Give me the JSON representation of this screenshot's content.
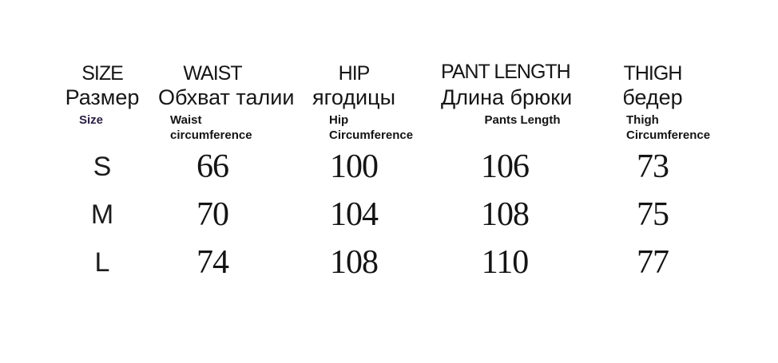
{
  "chart_data": {
    "type": "table",
    "columns": [
      {
        "en": "SIZE",
        "ru": "Размер",
        "sub": "Size"
      },
      {
        "en": "WAIST",
        "ru": "Обхват талии",
        "sub": "Waist circumference"
      },
      {
        "en": "HIP",
        "ru": "ягодицы",
        "sub": "Hip Circumference"
      },
      {
        "en": "PANT LENGTH",
        "ru": "Длина брюки",
        "sub": "Pants Length"
      },
      {
        "en": "THIGH",
        "ru": "бедер",
        "sub": "Thigh Circumference"
      }
    ],
    "rows": [
      {
        "size": "S",
        "waist": "66",
        "hip": "100",
        "pant_length": "106",
        "thigh": "73"
      },
      {
        "size": "M",
        "waist": "70",
        "hip": "104",
        "pant_length": "108",
        "thigh": "75"
      },
      {
        "size": "L",
        "waist": "74",
        "hip": "108",
        "pant_length": "110",
        "thigh": "77"
      }
    ]
  },
  "colors": {
    "background": "#ffffff",
    "text": "#161616",
    "size_sub_label": "#2b2144"
  }
}
